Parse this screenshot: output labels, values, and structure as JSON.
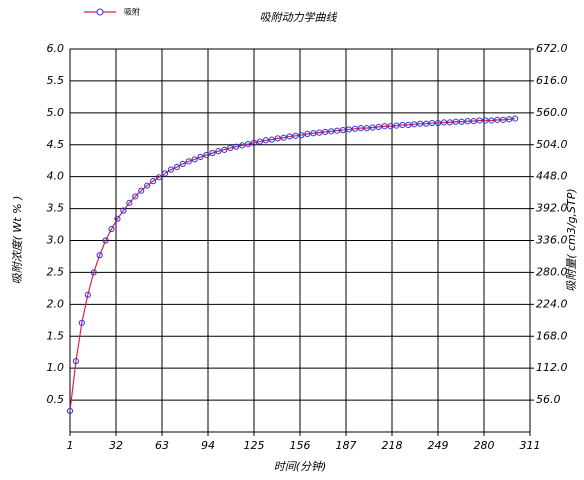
{
  "chart_data": {
    "type": "line",
    "title": "吸附动力学曲线",
    "xlabel": "时间(分钟)",
    "ylabel": "吸附浓度( Wt % )",
    "y2label": "吸附量( cm3/g,STP)",
    "x": [
      1,
      5,
      9,
      13,
      17,
      21,
      25,
      29,
      33,
      37,
      41,
      45,
      49,
      53,
      57,
      61,
      65,
      69,
      73,
      77,
      81,
      85,
      89,
      93,
      97,
      101,
      105,
      109,
      113,
      117,
      121,
      125,
      129,
      133,
      137,
      141,
      145,
      149,
      153,
      157,
      161,
      165,
      169,
      173,
      177,
      181,
      185,
      189,
      193,
      197,
      201,
      205,
      209,
      213,
      217,
      221,
      225,
      229,
      233,
      237,
      241,
      245,
      249,
      253,
      257,
      261,
      265,
      269,
      273,
      277,
      281,
      285,
      289,
      293,
      297,
      301
    ],
    "series": [
      {
        "name": "吸附",
        "color": "#e02040",
        "marker_color": "#3333dd",
        "values": [
          0.33,
          1.11,
          1.71,
          2.15,
          2.5,
          2.77,
          3.0,
          3.18,
          3.34,
          3.47,
          3.59,
          3.69,
          3.78,
          3.86,
          3.93,
          3.99,
          4.05,
          4.11,
          4.15,
          4.2,
          4.24,
          4.27,
          4.31,
          4.34,
          4.37,
          4.4,
          4.42,
          4.45,
          4.47,
          4.49,
          4.51,
          4.53,
          4.55,
          4.57,
          4.58,
          4.6,
          4.61,
          4.63,
          4.64,
          4.65,
          4.67,
          4.68,
          4.69,
          4.7,
          4.71,
          4.72,
          4.73,
          4.74,
          4.75,
          4.76,
          4.76,
          4.77,
          4.78,
          4.79,
          4.79,
          4.8,
          4.81,
          4.81,
          4.82,
          4.83,
          4.83,
          4.84,
          4.84,
          4.85,
          4.85,
          4.86,
          4.86,
          4.87,
          4.87,
          4.88,
          4.88,
          4.88,
          4.89,
          4.89,
          4.9,
          4.91
        ]
      }
    ],
    "xlim": [
      1,
      311
    ],
    "xticks": [
      1,
      32,
      63,
      94,
      125,
      156,
      187,
      218,
      249,
      280,
      311
    ],
    "ylim": [
      0,
      6
    ],
    "yticks": [
      {
        "value": 0.5,
        "label": "0.5"
      },
      {
        "value": 1,
        "label": "1.0"
      },
      {
        "value": 1.5,
        "label": "1.5"
      },
      {
        "value": 2,
        "label": "2.0"
      },
      {
        "value": 2.5,
        "label": "2.5"
      },
      {
        "value": 3,
        "label": "3.0"
      },
      {
        "value": 3.5,
        "label": "3.5"
      },
      {
        "value": 4,
        "label": "4.0"
      },
      {
        "value": 4.5,
        "label": "4.5"
      },
      {
        "value": 5,
        "label": "5.0"
      },
      {
        "value": 5.5,
        "label": "5.5"
      },
      {
        "value": 6,
        "label": "6.0"
      }
    ],
    "y2lim": [
      0,
      672
    ],
    "y2ticks": [
      {
        "value": 56,
        "label": "56.0"
      },
      {
        "value": 112,
        "label": "112.0"
      },
      {
        "value": 168,
        "label": "168.0"
      },
      {
        "value": 224,
        "label": "224.0"
      },
      {
        "value": 280,
        "label": "280.0"
      },
      {
        "value": 336,
        "label": "336.0"
      },
      {
        "value": 392,
        "label": "392.0"
      },
      {
        "value": 448,
        "label": "448.0"
      },
      {
        "value": 504,
        "label": "504.0"
      },
      {
        "value": 560,
        "label": "560.0"
      },
      {
        "value": 616,
        "label": "616.0"
      },
      {
        "value": 672,
        "label": "672.0"
      }
    ],
    "grid": true,
    "legend": "top-left"
  }
}
